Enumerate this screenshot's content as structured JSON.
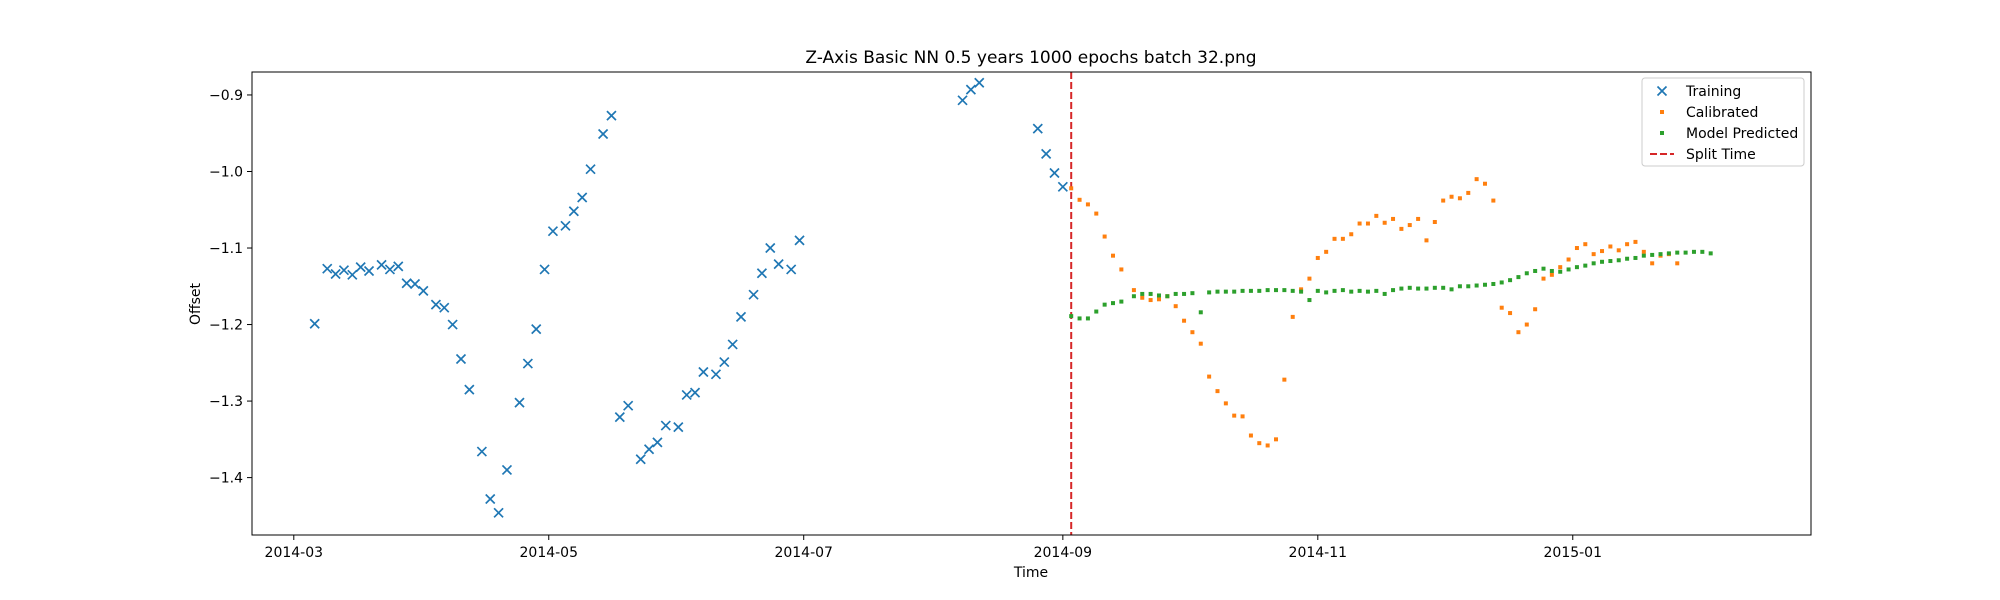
{
  "chart_data": {
    "type": "scatter",
    "title": "Z-Axis Basic NN 0.5 years 1000 epochs batch 32.png",
    "xlabel": "Time",
    "ylabel": "Offset",
    "xlim": [
      "2014-02-19",
      "2015-02-27"
    ],
    "ylim": [
      -1.475,
      -0.87
    ],
    "x_ticks": [
      "2014-03",
      "2014-05",
      "2014-07",
      "2014-09",
      "2014-11",
      "2015-01"
    ],
    "x_tick_dates": [
      "2014-03-01",
      "2014-05-01",
      "2014-07-01",
      "2014-09-01",
      "2014-11-01",
      "2015-01-01"
    ],
    "y_ticks": [
      "−1.4",
      "−1.3",
      "−1.2",
      "−1.1",
      "−1.0",
      "−0.9"
    ],
    "y_tick_values": [
      -1.4,
      -1.3,
      -1.2,
      -1.1,
      -1.0,
      -0.9
    ],
    "legend_position": "top-right",
    "split_time": "2014-09-03",
    "split_label": "Split Time",
    "colors": {
      "training": "#1f77b4",
      "calibrated": "#ff7f0e",
      "predicted": "#2ca02c",
      "split": "#d62728"
    },
    "series": [
      {
        "name": "Training",
        "marker": "x",
        "points": [
          [
            "2014-03-06",
            -1.199
          ],
          [
            "2014-03-09",
            -1.127
          ],
          [
            "2014-03-11",
            -1.134
          ],
          [
            "2014-03-13",
            -1.129
          ],
          [
            "2014-03-15",
            -1.135
          ],
          [
            "2014-03-17",
            -1.125
          ],
          [
            "2014-03-19",
            -1.13
          ],
          [
            "2014-03-22",
            -1.122
          ],
          [
            "2014-03-24",
            -1.128
          ],
          [
            "2014-03-26",
            -1.124
          ],
          [
            "2014-03-28",
            -1.146
          ],
          [
            "2014-03-30",
            -1.147
          ],
          [
            "2014-04-01",
            -1.156
          ],
          [
            "2014-04-04",
            -1.174
          ],
          [
            "2014-04-06",
            -1.178
          ],
          [
            "2014-04-08",
            -1.2
          ],
          [
            "2014-04-10",
            -1.245
          ],
          [
            "2014-04-12",
            -1.285
          ],
          [
            "2014-04-15",
            -1.366
          ],
          [
            "2014-04-17",
            -1.428
          ],
          [
            "2014-04-19",
            -1.446
          ],
          [
            "2014-04-21",
            -1.39
          ],
          [
            "2014-04-24",
            -1.302
          ],
          [
            "2014-04-26",
            -1.251
          ],
          [
            "2014-04-28",
            -1.206
          ],
          [
            "2014-04-30",
            -1.128
          ],
          [
            "2014-05-02",
            -1.078
          ],
          [
            "2014-05-05",
            -1.071
          ],
          [
            "2014-05-07",
            -1.052
          ],
          [
            "2014-05-09",
            -1.034
          ],
          [
            "2014-05-11",
            -0.997
          ],
          [
            "2014-05-14",
            -0.951
          ],
          [
            "2014-05-16",
            -0.927
          ],
          [
            "2014-05-18",
            -1.321
          ],
          [
            "2014-05-20",
            -1.306
          ],
          [
            "2014-05-23",
            -1.376
          ],
          [
            "2014-05-25",
            -1.363
          ],
          [
            "2014-05-27",
            -1.354
          ],
          [
            "2014-05-29",
            -1.332
          ],
          [
            "2014-06-01",
            -1.334
          ],
          [
            "2014-06-03",
            -1.292
          ],
          [
            "2014-06-05",
            -1.289
          ],
          [
            "2014-06-07",
            -1.262
          ],
          [
            "2014-06-10",
            -1.265
          ],
          [
            "2014-06-12",
            -1.249
          ],
          [
            "2014-06-14",
            -1.226
          ],
          [
            "2014-06-16",
            -1.19
          ],
          [
            "2014-06-19",
            -1.161
          ],
          [
            "2014-06-21",
            -1.133
          ],
          [
            "2014-06-23",
            -1.1
          ],
          [
            "2014-06-25",
            -1.121
          ],
          [
            "2014-06-28",
            -1.128
          ],
          [
            "2014-06-30",
            -1.09
          ],
          [
            "2014-08-08",
            -0.907
          ],
          [
            "2014-08-10",
            -0.893
          ],
          [
            "2014-08-12",
            -0.884
          ],
          [
            "2014-08-26",
            -0.944
          ],
          [
            "2014-08-28",
            -0.977
          ],
          [
            "2014-08-30",
            -1.002
          ],
          [
            "2014-09-01",
            -1.02
          ]
        ]
      },
      {
        "name": "Calibrated",
        "marker": "dot",
        "points": [
          [
            "2014-09-03",
            -1.022
          ],
          [
            "2014-09-05",
            -1.037
          ],
          [
            "2014-09-07",
            -1.043
          ],
          [
            "2014-09-09",
            -1.055
          ],
          [
            "2014-09-11",
            -1.085
          ],
          [
            "2014-09-13",
            -1.11
          ],
          [
            "2014-09-15",
            -1.128
          ],
          [
            "2014-09-18",
            -1.155
          ],
          [
            "2014-09-20",
            -1.165
          ],
          [
            "2014-09-22",
            -1.168
          ],
          [
            "2014-09-24",
            -1.167
          ],
          [
            "2014-09-26",
            -1.163
          ],
          [
            "2014-09-28",
            -1.176
          ],
          [
            "2014-09-30",
            -1.195
          ],
          [
            "2014-10-02",
            -1.21
          ],
          [
            "2014-10-04",
            -1.225
          ],
          [
            "2014-10-06",
            -1.268
          ],
          [
            "2014-10-08",
            -1.287
          ],
          [
            "2014-10-10",
            -1.303
          ],
          [
            "2014-10-12",
            -1.319
          ],
          [
            "2014-10-14",
            -1.32
          ],
          [
            "2014-10-16",
            -1.345
          ],
          [
            "2014-10-18",
            -1.355
          ],
          [
            "2014-10-20",
            -1.358
          ],
          [
            "2014-10-22",
            -1.35
          ],
          [
            "2014-10-24",
            -1.272
          ],
          [
            "2014-10-26",
            -1.19
          ],
          [
            "2014-10-28",
            -1.154
          ],
          [
            "2014-10-30",
            -1.14
          ],
          [
            "2014-11-01",
            -1.113
          ],
          [
            "2014-11-03",
            -1.105
          ],
          [
            "2014-11-05",
            -1.088
          ],
          [
            "2014-11-07",
            -1.088
          ],
          [
            "2014-11-09",
            -1.082
          ],
          [
            "2014-11-11",
            -1.068
          ],
          [
            "2014-11-13",
            -1.068
          ],
          [
            "2014-11-15",
            -1.058
          ],
          [
            "2014-11-17",
            -1.067
          ],
          [
            "2014-11-19",
            -1.062
          ],
          [
            "2014-11-21",
            -1.075
          ],
          [
            "2014-11-23",
            -1.07
          ],
          [
            "2014-11-25",
            -1.062
          ],
          [
            "2014-11-27",
            -1.09
          ],
          [
            "2014-11-29",
            -1.066
          ],
          [
            "2014-12-01",
            -1.038
          ],
          [
            "2014-12-03",
            -1.033
          ],
          [
            "2014-12-05",
            -1.035
          ],
          [
            "2014-12-07",
            -1.028
          ],
          [
            "2014-12-09",
            -1.01
          ],
          [
            "2014-12-11",
            -1.016
          ],
          [
            "2014-12-13",
            -1.038
          ],
          [
            "2014-12-15",
            -1.178
          ],
          [
            "2014-12-17",
            -1.185
          ],
          [
            "2014-12-19",
            -1.21
          ],
          [
            "2014-12-21",
            -1.2
          ],
          [
            "2014-12-23",
            -1.18
          ],
          [
            "2014-12-25",
            -1.14
          ],
          [
            "2014-12-27",
            -1.135
          ],
          [
            "2014-12-29",
            -1.125
          ],
          [
            "2014-12-31",
            -1.115
          ],
          [
            "2015-01-02",
            -1.1
          ],
          [
            "2015-01-04",
            -1.095
          ],
          [
            "2015-01-06",
            -1.108
          ],
          [
            "2015-01-08",
            -1.104
          ],
          [
            "2015-01-10",
            -1.098
          ],
          [
            "2015-01-12",
            -1.103
          ],
          [
            "2015-01-14",
            -1.095
          ],
          [
            "2015-01-16",
            -1.092
          ],
          [
            "2015-01-18",
            -1.105
          ],
          [
            "2015-01-20",
            -1.12
          ],
          [
            "2015-01-22",
            -1.11
          ],
          [
            "2015-01-24",
            -1.108
          ],
          [
            "2015-01-26",
            -1.12
          ]
        ]
      },
      {
        "name": "Model Predicted",
        "marker": "dot",
        "points": [
          [
            "2014-09-03",
            -1.189
          ],
          [
            "2014-09-05",
            -1.192
          ],
          [
            "2014-09-07",
            -1.192
          ],
          [
            "2014-09-09",
            -1.183
          ],
          [
            "2014-09-11",
            -1.174
          ],
          [
            "2014-09-13",
            -1.172
          ],
          [
            "2014-09-15",
            -1.17
          ],
          [
            "2014-09-18",
            -1.163
          ],
          [
            "2014-09-20",
            -1.16
          ],
          [
            "2014-09-22",
            -1.16
          ],
          [
            "2014-09-24",
            -1.162
          ],
          [
            "2014-09-26",
            -1.163
          ],
          [
            "2014-09-28",
            -1.16
          ],
          [
            "2014-09-30",
            -1.16
          ],
          [
            "2014-10-02",
            -1.159
          ],
          [
            "2014-10-04",
            -1.184
          ],
          [
            "2014-10-06",
            -1.158
          ],
          [
            "2014-10-08",
            -1.157
          ],
          [
            "2014-10-10",
            -1.157
          ],
          [
            "2014-10-12",
            -1.157
          ],
          [
            "2014-10-14",
            -1.156
          ],
          [
            "2014-10-16",
            -1.156
          ],
          [
            "2014-10-18",
            -1.156
          ],
          [
            "2014-10-20",
            -1.155
          ],
          [
            "2014-10-22",
            -1.155
          ],
          [
            "2014-10-24",
            -1.155
          ],
          [
            "2014-10-26",
            -1.156
          ],
          [
            "2014-10-28",
            -1.157
          ],
          [
            "2014-10-30",
            -1.168
          ],
          [
            "2014-11-01",
            -1.156
          ],
          [
            "2014-11-03",
            -1.158
          ],
          [
            "2014-11-05",
            -1.156
          ],
          [
            "2014-11-07",
            -1.155
          ],
          [
            "2014-11-09",
            -1.157
          ],
          [
            "2014-11-11",
            -1.156
          ],
          [
            "2014-11-13",
            -1.157
          ],
          [
            "2014-11-15",
            -1.156
          ],
          [
            "2014-11-17",
            -1.16
          ],
          [
            "2014-11-19",
            -1.155
          ],
          [
            "2014-11-21",
            -1.153
          ],
          [
            "2014-11-23",
            -1.152
          ],
          [
            "2014-11-25",
            -1.153
          ],
          [
            "2014-11-27",
            -1.153
          ],
          [
            "2014-11-29",
            -1.152
          ],
          [
            "2014-12-01",
            -1.152
          ],
          [
            "2014-12-03",
            -1.154
          ],
          [
            "2014-12-05",
            -1.15
          ],
          [
            "2014-12-07",
            -1.15
          ],
          [
            "2014-12-09",
            -1.149
          ],
          [
            "2014-12-11",
            -1.148
          ],
          [
            "2014-12-13",
            -1.147
          ],
          [
            "2014-12-15",
            -1.145
          ],
          [
            "2014-12-17",
            -1.142
          ],
          [
            "2014-12-19",
            -1.138
          ],
          [
            "2014-12-21",
            -1.133
          ],
          [
            "2014-12-23",
            -1.13
          ],
          [
            "2014-12-25",
            -1.127
          ],
          [
            "2014-12-27",
            -1.13
          ],
          [
            "2014-12-29",
            -1.131
          ],
          [
            "2014-12-31",
            -1.128
          ],
          [
            "2015-01-02",
            -1.125
          ],
          [
            "2015-01-04",
            -1.123
          ],
          [
            "2015-01-06",
            -1.12
          ],
          [
            "2015-01-08",
            -1.118
          ],
          [
            "2015-01-10",
            -1.117
          ],
          [
            "2015-01-12",
            -1.116
          ],
          [
            "2015-01-14",
            -1.114
          ],
          [
            "2015-01-16",
            -1.113
          ],
          [
            "2015-01-18",
            -1.11
          ],
          [
            "2015-01-20",
            -1.109
          ],
          [
            "2015-01-22",
            -1.108
          ],
          [
            "2015-01-24",
            -1.107
          ],
          [
            "2015-01-26",
            -1.106
          ],
          [
            "2015-01-28",
            -1.106
          ],
          [
            "2015-01-30",
            -1.105
          ],
          [
            "2015-02-01",
            -1.105
          ],
          [
            "2015-02-03",
            -1.107
          ]
        ]
      }
    ]
  }
}
